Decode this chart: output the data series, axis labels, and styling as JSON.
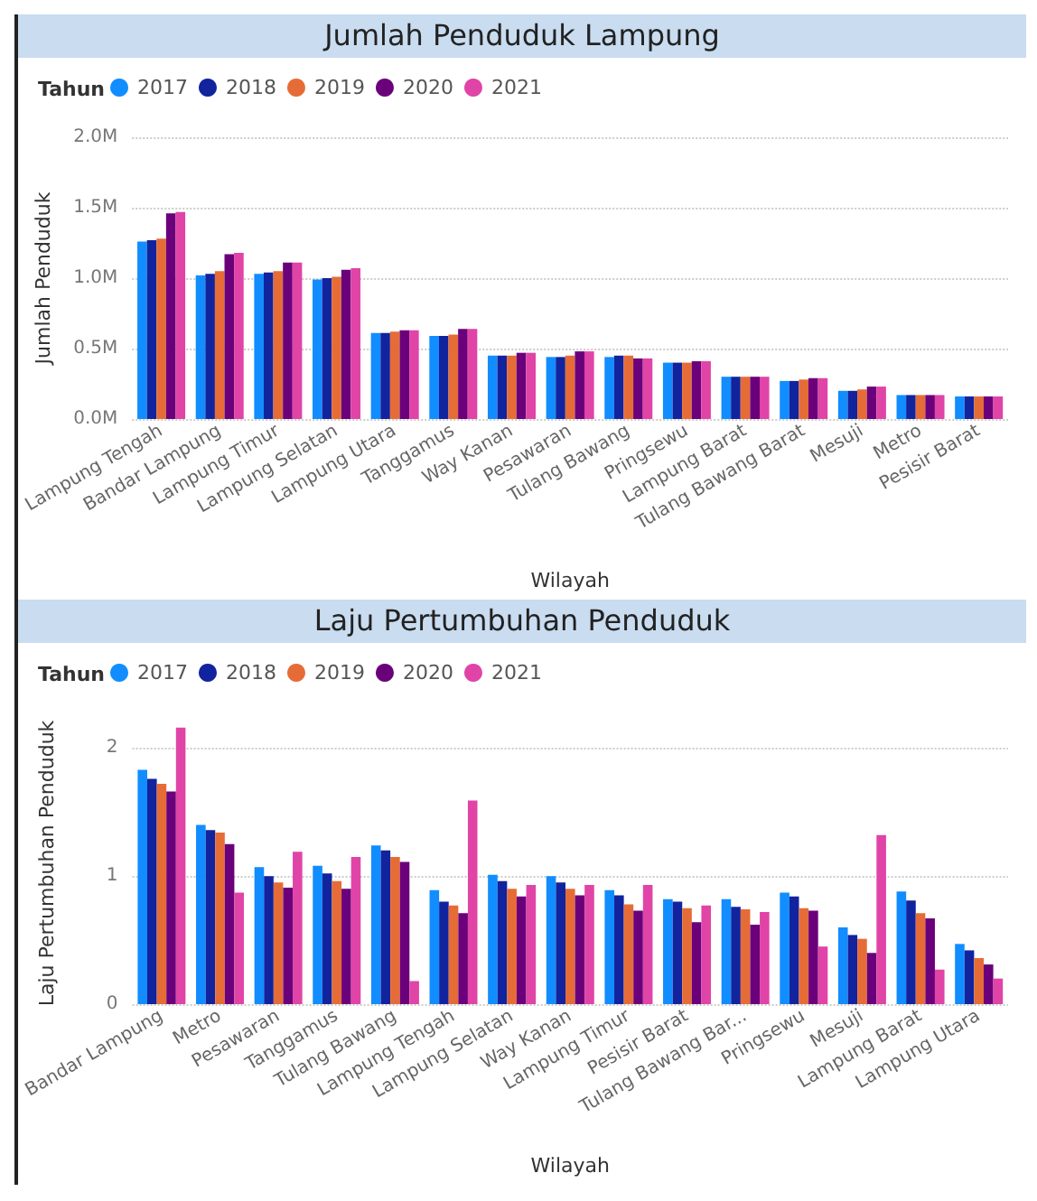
{
  "chart_data": [
    {
      "type": "bar",
      "title": "Jumlah Penduduk Lampung",
      "xlabel": "Wilayah",
      "ylabel": "Jumlah Penduduk",
      "legend_title": "Tahun",
      "legend": "top left",
      "grid": "y",
      "categories": [
        "Lampung Tengah",
        "Bandar Lampung",
        "Lampung Timur",
        "Lampung Selatan",
        "Lampung Utara",
        "Tanggamus",
        "Way Kanan",
        "Pesawaran",
        "Tulang Bawang",
        "Pringsewu",
        "Lampung Barat",
        "Tulang Bawang Barat",
        "Mesuji",
        "Metro",
        "Pesisir Barat"
      ],
      "ylim": [
        0,
        2000000
      ],
      "yticks": [
        {
          "value": 0,
          "label": "0.0M"
        },
        {
          "value": 500000,
          "label": "0.5M"
        },
        {
          "value": 1000000,
          "label": "1.0M"
        },
        {
          "value": 1500000,
          "label": "1.5M"
        },
        {
          "value": 2000000,
          "label": "2.0M"
        }
      ],
      "series": [
        {
          "name": "2017",
          "color": "#118dff",
          "values": [
            1260000,
            1020000,
            1030000,
            990000,
            610000,
            590000,
            450000,
            440000,
            440000,
            400000,
            300000,
            270000,
            200000,
            170000,
            160000
          ]
        },
        {
          "name": "2018",
          "color": "#12239e",
          "values": [
            1270000,
            1030000,
            1040000,
            1000000,
            610000,
            590000,
            450000,
            440000,
            450000,
            400000,
            300000,
            270000,
            200000,
            170000,
            160000
          ]
        },
        {
          "name": "2019",
          "color": "#e66c37",
          "values": [
            1280000,
            1050000,
            1050000,
            1010000,
            620000,
            600000,
            450000,
            450000,
            450000,
            400000,
            300000,
            280000,
            210000,
            170000,
            160000
          ]
        },
        {
          "name": "2020",
          "color": "#6b007b",
          "values": [
            1460000,
            1170000,
            1110000,
            1060000,
            630000,
            640000,
            470000,
            480000,
            430000,
            410000,
            300000,
            290000,
            230000,
            170000,
            160000
          ]
        },
        {
          "name": "2021",
          "color": "#e044a7",
          "values": [
            1470000,
            1180000,
            1110000,
            1070000,
            630000,
            640000,
            470000,
            480000,
            430000,
            410000,
            300000,
            290000,
            230000,
            170000,
            160000
          ]
        }
      ]
    },
    {
      "type": "bar",
      "title": "Laju Pertumbuhan Penduduk",
      "xlabel": "Wilayah",
      "ylabel": "Laju Pertumbuhan Penduduk",
      "legend_title": "Tahun",
      "legend": "top left",
      "grid": "y",
      "categories": [
        "Bandar Lampung",
        "Metro",
        "Pesawaran",
        "Tanggamus",
        "Tulang Bawang",
        "Lampung Tengah",
        "Lampung Selatan",
        "Way Kanan",
        "Lampung Timur",
        "Pesisir Barat",
        "Tulang Bawang Bar...",
        "Pringsewu",
        "Mesuji",
        "Lampung Barat",
        "Lampung Utara"
      ],
      "ylim": [
        0,
        2.2
      ],
      "yticks": [
        0,
        1,
        2
      ],
      "series": [
        {
          "name": "2017",
          "color": "#118dff",
          "values": [
            1.83,
            1.4,
            1.07,
            1.08,
            1.24,
            0.89,
            1.01,
            1.0,
            0.89,
            0.82,
            0.82,
            0.87,
            0.6,
            0.88,
            0.47
          ]
        },
        {
          "name": "2018",
          "color": "#12239e",
          "values": [
            1.76,
            1.36,
            1.0,
            1.02,
            1.2,
            0.8,
            0.96,
            0.95,
            0.85,
            0.8,
            0.76,
            0.84,
            0.54,
            0.81,
            0.42
          ]
        },
        {
          "name": "2019",
          "color": "#e66c37",
          "values": [
            1.72,
            1.34,
            0.95,
            0.96,
            1.15,
            0.77,
            0.9,
            0.9,
            0.78,
            0.75,
            0.74,
            0.75,
            0.51,
            0.71,
            0.36
          ]
        },
        {
          "name": "2020",
          "color": "#6b007b",
          "values": [
            1.66,
            1.25,
            0.91,
            0.9,
            1.11,
            0.71,
            0.84,
            0.85,
            0.73,
            0.64,
            0.62,
            0.73,
            0.4,
            0.67,
            0.31
          ]
        },
        {
          "name": "2021",
          "color": "#e044a7",
          "values": [
            2.16,
            0.87,
            1.19,
            1.15,
            0.18,
            1.59,
            0.93,
            0.93,
            0.93,
            0.77,
            0.72,
            0.45,
            1.32,
            0.27,
            0.2
          ]
        }
      ]
    }
  ]
}
